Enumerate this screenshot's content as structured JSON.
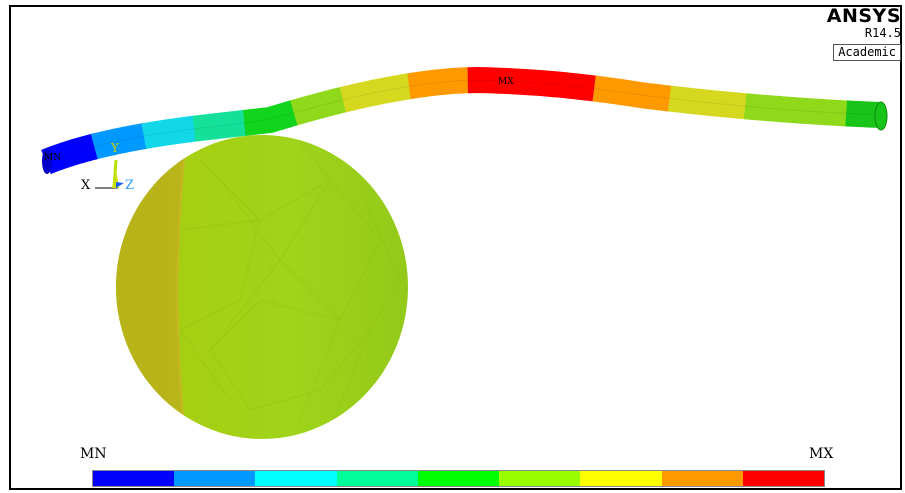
{
  "brand": {
    "name": "ANSYS",
    "version": "R14.5",
    "license": "Academic"
  },
  "markers": {
    "min": "MN",
    "max": "MX"
  },
  "triad": {
    "x": "X",
    "y": "Y",
    "z": "Z"
  },
  "legend": {
    "min_label": "MN",
    "max_label": "MX",
    "colors": [
      "#0000ff",
      "#0099ff",
      "#00ffff",
      "#00ff99",
      "#00ff00",
      "#99ff00",
      "#ffff00",
      "#ff9900",
      "#ff0000"
    ]
  }
}
